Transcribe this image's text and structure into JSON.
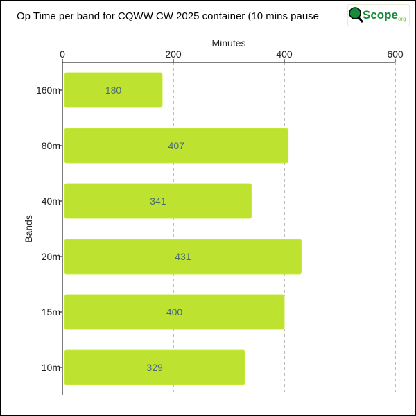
{
  "chart_data": {
    "type": "bar",
    "orientation": "horizontal",
    "title": "Op Time per band for CQWW CW 2025 container (10 mins pause",
    "xlabel": "Minutes",
    "ylabel": "Bands",
    "xlim": [
      0,
      600
    ],
    "xticks": [
      "0",
      "200",
      "400",
      "600"
    ],
    "categories": [
      "160m",
      "80m",
      "40m",
      "20m",
      "15m",
      "10m"
    ],
    "values": [
      180,
      407,
      341,
      431,
      400,
      329
    ],
    "data_labels": [
      "180",
      "407",
      "341",
      "431",
      "400",
      "329"
    ],
    "grid": "vertical dashed",
    "colors": {
      "bar": "#bde22f",
      "label": "#4a6a7a"
    }
  },
  "logo": {
    "text": "Scope",
    "suffix": "org"
  }
}
